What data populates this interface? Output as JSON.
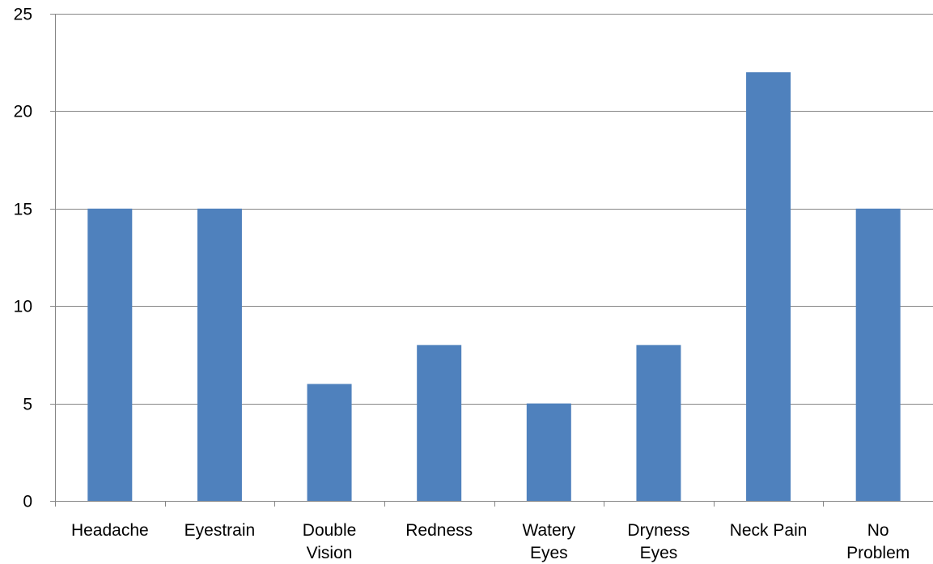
{
  "chart_data": {
    "type": "bar",
    "title": "",
    "xlabel": "",
    "ylabel": "",
    "categories": [
      [
        "Headache"
      ],
      [
        "Eyestrain"
      ],
      [
        "Double",
        "Vision"
      ],
      [
        "Redness"
      ],
      [
        "Watery",
        "Eyes"
      ],
      [
        "Dryness",
        "Eyes"
      ],
      [
        "Neck Pain"
      ],
      [
        "No",
        "Problem"
      ]
    ],
    "values": [
      15,
      15,
      6,
      8,
      5,
      8,
      22,
      15
    ],
    "ylim": [
      0,
      25
    ],
    "yticks": [
      0,
      5,
      10,
      15,
      20,
      25
    ],
    "grid": true,
    "legend": "none",
    "colors": {
      "bar": "#4F81BD",
      "grid": "#868686",
      "text": "#000000"
    }
  }
}
